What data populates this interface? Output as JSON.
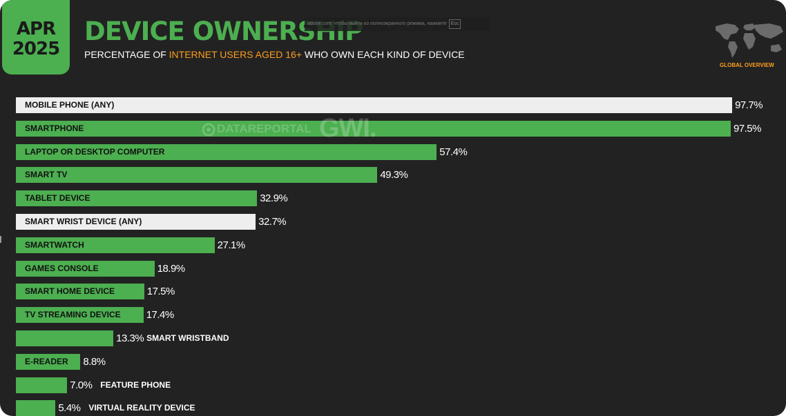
{
  "header": {
    "date_month": "APR",
    "date_year": "2025",
    "title": "DEVICE OWNERSHIP",
    "subtitle_before": "PERCENTAGE OF ",
    "subtitle_highlight": "INTERNET USERS AGED 16+",
    "subtitle_after": " WHO OWN EACH KIND OF DEVICE",
    "region_label": "GLOBAL OVERVIEW"
  },
  "overlay": {
    "fullscreen_hint": "adobe.com: чтобы выйти из полноэкранного режима, нажмите",
    "esc_key": "Esc"
  },
  "watermark": {
    "datareportal": "DATAREPORTAL",
    "gwi": "GWI."
  },
  "colors": {
    "background": "#222222",
    "accent_green": "#4caf50",
    "highlight_orange": "#ff9f1c",
    "total_bar": "#eeeeee"
  },
  "chart_data": {
    "type": "bar",
    "orientation": "horizontal",
    "xlim": [
      0,
      100
    ],
    "value_suffix": "%",
    "categories": [
      "MOBILE PHONE (ANY)",
      "SMARTPHONE",
      "LAPTOP OR DESKTOP COMPUTER",
      "SMART TV",
      "TABLET DEVICE",
      "SMART WRIST DEVICE (ANY)",
      "SMARTWATCH",
      "GAMES CONSOLE",
      "SMART HOME DEVICE",
      "TV STREAMING DEVICE",
      "SMART WRISTBAND",
      "E-READER",
      "FEATURE PHONE",
      "VIRTUAL REALITY DEVICE"
    ],
    "values": [
      97.7,
      97.5,
      57.4,
      49.3,
      32.9,
      32.7,
      27.1,
      18.9,
      17.5,
      17.4,
      13.3,
      8.8,
      7.0,
      5.4
    ],
    "value_labels": [
      "97.7%",
      "97.5%",
      "57.4%",
      "49.3%",
      "32.9%",
      "32.7%",
      "27.1%",
      "18.9%",
      "17.5%",
      "17.4%",
      "13.3%",
      "8.8%",
      "7.0%",
      "5.4%"
    ],
    "group_totals": [
      "MOBILE PHONE (ANY)",
      "SMART WRIST DEVICE (ANY)"
    ],
    "grid": false,
    "legend": "none"
  }
}
